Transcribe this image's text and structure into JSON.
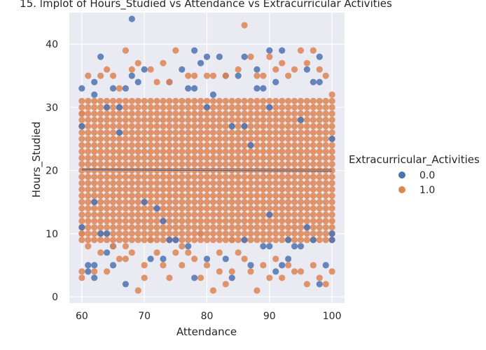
{
  "chart_data": {
    "type": "scatter",
    "title": "15. lmplot of Hours_Studied vs Attendance vs Extracurricular Activities",
    "xlabel": "Attendance",
    "ylabel": "Hours_Studied",
    "xlim": [
      58,
      102
    ],
    "ylim": [
      -1,
      45
    ],
    "xticks": [
      60,
      70,
      80,
      90,
      100
    ],
    "yticks": [
      0,
      10,
      20,
      30,
      40
    ],
    "grid": true,
    "legend": {
      "title": "Extracurricular_Activities",
      "placement": "right",
      "entries": [
        "0.0",
        "1.0"
      ]
    },
    "series": [
      {
        "name": "0.0",
        "color": "#4c72b0",
        "regression": {
          "x": [
            60,
            100
          ],
          "y": [
            20.1,
            19.9
          ]
        },
        "points": [
          [
            60,
            33
          ],
          [
            60,
            27
          ],
          [
            60,
            11
          ],
          [
            61,
            5
          ],
          [
            61,
            4
          ],
          [
            62,
            34
          ],
          [
            62,
            32
          ],
          [
            62,
            15
          ],
          [
            62,
            5
          ],
          [
            62,
            3
          ],
          [
            63,
            38
          ],
          [
            63,
            10
          ],
          [
            64,
            30
          ],
          [
            64,
            10
          ],
          [
            64,
            7
          ],
          [
            65,
            33
          ],
          [
            65,
            5
          ],
          [
            65,
            8
          ],
          [
            66,
            30
          ],
          [
            66,
            26
          ],
          [
            67,
            33
          ],
          [
            67,
            2
          ],
          [
            68,
            44
          ],
          [
            68,
            35
          ],
          [
            69,
            34
          ],
          [
            70,
            36
          ],
          [
            70,
            15
          ],
          [
            71,
            6
          ],
          [
            72,
            14
          ],
          [
            73,
            12
          ],
          [
            73,
            6
          ],
          [
            74,
            34
          ],
          [
            74,
            9
          ],
          [
            75,
            9
          ],
          [
            76,
            36
          ],
          [
            77,
            33
          ],
          [
            77,
            8
          ],
          [
            78,
            39
          ],
          [
            78,
            33
          ],
          [
            78,
            3
          ],
          [
            79,
            37
          ],
          [
            80,
            38
          ],
          [
            80,
            30
          ],
          [
            80,
            6
          ],
          [
            81,
            32
          ],
          [
            82,
            38
          ],
          [
            83,
            35
          ],
          [
            83,
            6
          ],
          [
            84,
            27
          ],
          [
            84,
            3
          ],
          [
            85,
            35
          ],
          [
            86,
            38
          ],
          [
            86,
            27
          ],
          [
            86,
            9
          ],
          [
            87,
            24
          ],
          [
            87,
            5
          ],
          [
            88,
            33
          ],
          [
            88,
            36
          ],
          [
            89,
            33
          ],
          [
            89,
            8
          ],
          [
            90,
            39
          ],
          [
            90,
            30
          ],
          [
            90,
            13
          ],
          [
            90,
            8
          ],
          [
            91,
            34
          ],
          [
            91,
            4
          ],
          [
            92,
            39
          ],
          [
            92,
            5
          ],
          [
            93,
            9
          ],
          [
            93,
            6
          ],
          [
            94,
            8
          ],
          [
            95,
            28
          ],
          [
            95,
            8
          ],
          [
            96,
            36
          ],
          [
            96,
            11
          ],
          [
            97,
            34
          ],
          [
            97,
            9
          ],
          [
            98,
            38
          ],
          [
            98,
            34
          ],
          [
            98,
            2
          ],
          [
            99,
            5
          ],
          [
            100,
            25
          ],
          [
            100,
            10
          ],
          [
            100,
            9
          ]
        ]
      },
      {
        "name": "1.0",
        "color": "#dd8452",
        "regression": {
          "x": [
            60,
            100
          ],
          "y": [
            20.3,
            20.2
          ]
        },
        "points": [
          [
            60,
            29
          ],
          [
            60,
            10
          ],
          [
            60,
            3
          ],
          [
            60,
            4
          ],
          [
            61,
            35
          ],
          [
            61,
            8
          ],
          [
            62,
            4
          ],
          [
            63,
            35
          ],
          [
            63,
            7
          ],
          [
            64,
            36
          ],
          [
            64,
            4
          ],
          [
            65,
            35
          ],
          [
            65,
            8
          ],
          [
            66,
            33
          ],
          [
            66,
            6
          ],
          [
            67,
            39
          ],
          [
            67,
            8
          ],
          [
            67,
            6
          ],
          [
            68,
            36
          ],
          [
            68,
            7
          ],
          [
            69,
            37
          ],
          [
            69,
            1
          ],
          [
            70,
            3
          ],
          [
            70,
            5
          ],
          [
            71,
            36
          ],
          [
            71,
            9
          ],
          [
            72,
            34
          ],
          [
            72,
            7
          ],
          [
            73,
            37
          ],
          [
            73,
            5
          ],
          [
            74,
            34
          ],
          [
            74,
            3
          ],
          [
            75,
            39
          ],
          [
            75,
            7
          ],
          [
            76,
            5
          ],
          [
            76,
            8
          ],
          [
            77,
            35
          ],
          [
            77,
            7
          ],
          [
            78,
            35
          ],
          [
            78,
            6
          ],
          [
            79,
            3
          ],
          [
            79,
            10
          ],
          [
            80,
            35
          ],
          [
            80,
            5
          ],
          [
            81,
            1
          ],
          [
            81,
            35
          ],
          [
            82,
            7
          ],
          [
            82,
            4
          ],
          [
            83,
            35
          ],
          [
            83,
            2
          ],
          [
            84,
            9
          ],
          [
            84,
            4
          ],
          [
            85,
            36
          ],
          [
            85,
            7
          ],
          [
            86,
            43
          ],
          [
            86,
            6
          ],
          [
            87,
            38
          ],
          [
            87,
            4
          ],
          [
            88,
            35
          ],
          [
            88,
            1
          ],
          [
            89,
            35
          ],
          [
            89,
            5
          ],
          [
            90,
            38
          ],
          [
            90,
            3
          ],
          [
            91,
            36
          ],
          [
            91,
            6
          ],
          [
            92,
            37
          ],
          [
            92,
            3
          ],
          [
            93,
            35
          ],
          [
            93,
            5
          ],
          [
            94,
            36
          ],
          [
            94,
            4
          ],
          [
            95,
            39
          ],
          [
            95,
            4
          ],
          [
            96,
            37
          ],
          [
            96,
            2
          ],
          [
            97,
            39
          ],
          [
            97,
            5
          ],
          [
            98,
            36
          ],
          [
            98,
            3
          ],
          [
            99,
            35
          ],
          [
            99,
            2
          ],
          [
            100,
            32
          ],
          [
            100,
            4
          ]
        ]
      }
    ]
  }
}
